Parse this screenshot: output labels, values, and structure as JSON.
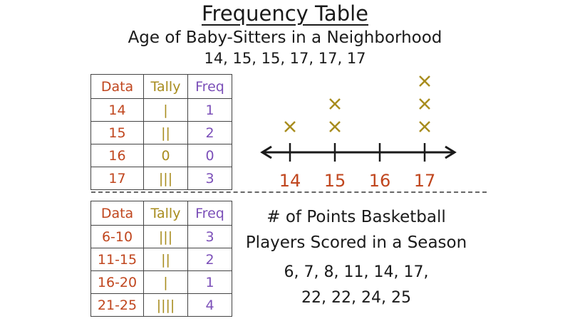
{
  "title": "Frequency Table",
  "subtitle": "Age of Baby-Sitters in a Neighborhood",
  "data_line": "14, 15, 15, 17, 17, 17",
  "table1": {
    "headers": [
      "Data",
      "Tally",
      "Freq"
    ],
    "rows": [
      {
        "data": "14",
        "tally": "|",
        "freq": "1"
      },
      {
        "data": "15",
        "tally": "||",
        "freq": "2"
      },
      {
        "data": "16",
        "tally": "0",
        "freq": "0"
      },
      {
        "data": "17",
        "tally": "|||",
        "freq": "3"
      }
    ]
  },
  "table2": {
    "headers": [
      "Data",
      "Tally",
      "Freq"
    ],
    "rows": [
      {
        "data": "6-10",
        "tally": "|||",
        "freq": "3"
      },
      {
        "data": "11-15",
        "tally": "||",
        "freq": "2"
      },
      {
        "data": "16-20",
        "tally": "|",
        "freq": "1"
      },
      {
        "data": "21-25",
        "tally": "||||",
        "freq": "4"
      }
    ]
  },
  "question2": {
    "title_line1": "# of Points Basketball",
    "title_line2": "Players Scored in a Season",
    "data_line1": "6, 7, 8, 11, 14, 17,",
    "data_line2": "22, 22, 24, 25"
  },
  "colors": {
    "data": "#c0461e",
    "tally": "#a88c1e",
    "freq": "#7b4fb8",
    "marker": "#a88c1e",
    "axis": "#1a1a1a"
  },
  "chart_data": {
    "type": "scatter",
    "subtype": "line-plot",
    "marker": "x",
    "categories": [
      "14",
      "15",
      "16",
      "17"
    ],
    "values": [
      1,
      2,
      0,
      3
    ],
    "xlim": [
      14,
      17
    ],
    "grid": false
  }
}
